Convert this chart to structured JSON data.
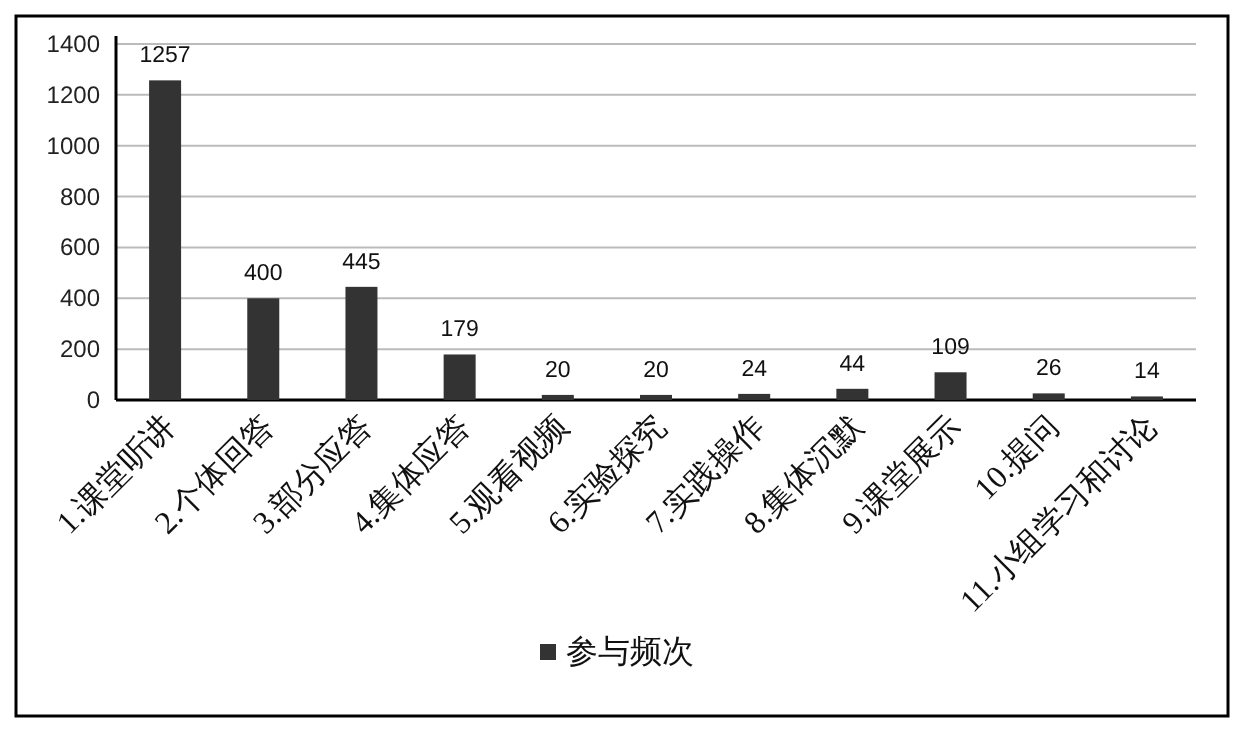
{
  "chart_data": {
    "type": "bar",
    "categories": [
      "1.课堂听讲",
      "2.个体回答",
      "3.部分应答",
      "4.集体应答",
      "5.观看视频",
      "6.实验探究",
      "7.实践操作",
      "8.集体沉默",
      "9.课堂展示",
      "10.提问",
      "11.小组学习和讨论"
    ],
    "series": [
      {
        "name": "参与频次",
        "color": "#333333",
        "values": [
          1257,
          400,
          445,
          179,
          20,
          20,
          24,
          44,
          109,
          26,
          14
        ]
      }
    ],
    "ylim": [
      0,
      1400
    ],
    "yticks": [
      0,
      200,
      400,
      600,
      800,
      1000,
      1200,
      1400
    ],
    "grid": "y",
    "legend": "bottom",
    "data_labels": true
  }
}
